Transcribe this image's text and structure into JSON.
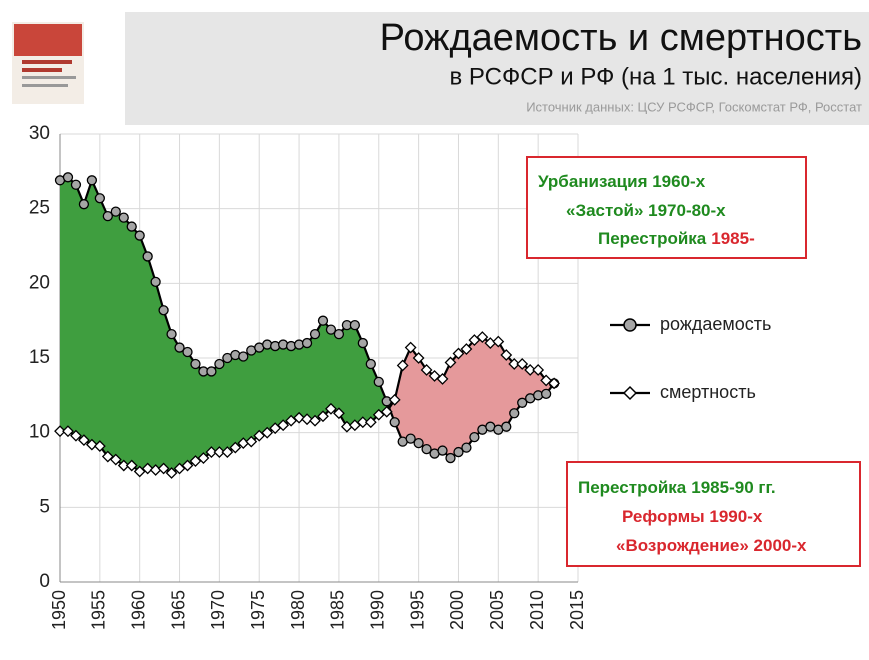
{
  "chart_data": {
    "type": "line",
    "title": "Рождаемость и смертность",
    "subtitle": "в РСФСР и РФ (на 1 тыс. населения)",
    "source": "Источник данных: ЦСУ РСФСР, Госкомстат РФ, Росстат",
    "x": [
      1950,
      1951,
      1952,
      1953,
      1954,
      1955,
      1956,
      1957,
      1958,
      1959,
      1960,
      1961,
      1962,
      1963,
      1964,
      1965,
      1966,
      1967,
      1968,
      1969,
      1970,
      1971,
      1972,
      1973,
      1974,
      1975,
      1976,
      1977,
      1978,
      1979,
      1980,
      1981,
      1982,
      1983,
      1984,
      1985,
      1986,
      1987,
      1988,
      1989,
      1990,
      1991,
      1992,
      1993,
      1994,
      1995,
      1996,
      1997,
      1998,
      1999,
      2000,
      2001,
      2002,
      2003,
      2004,
      2005,
      2006,
      2007,
      2008,
      2009,
      2010,
      2011,
      2012
    ],
    "series": [
      {
        "name": "рождаемость",
        "color": "#000000",
        "marker": "circle",
        "marker_fill": "#a6a6a6",
        "values": [
          26.9,
          27.1,
          26.6,
          25.3,
          26.9,
          25.7,
          24.5,
          24.8,
          24.4,
          23.8,
          23.2,
          21.8,
          20.1,
          18.2,
          16.6,
          15.7,
          15.4,
          14.6,
          14.1,
          14.1,
          14.6,
          15.0,
          15.2,
          15.1,
          15.5,
          15.7,
          15.9,
          15.8,
          15.9,
          15.8,
          15.9,
          16.0,
          16.6,
          17.5,
          16.9,
          16.6,
          17.2,
          17.2,
          16.0,
          14.6,
          13.4,
          12.1,
          10.7,
          9.4,
          9.6,
          9.3,
          8.9,
          8.6,
          8.8,
          8.3,
          8.7,
          9.0,
          9.7,
          10.2,
          10.4,
          10.2,
          10.4,
          11.3,
          12.0,
          12.3,
          12.5,
          12.6,
          13.3
        ]
      },
      {
        "name": "смертность",
        "color": "#000000",
        "marker": "diamond",
        "marker_fill": "#ffffff",
        "values": [
          10.1,
          10.1,
          9.8,
          9.5,
          9.2,
          9.1,
          8.4,
          8.2,
          7.8,
          7.8,
          7.4,
          7.6,
          7.5,
          7.6,
          7.3,
          7.6,
          7.8,
          8.1,
          8.3,
          8.7,
          8.7,
          8.7,
          9.0,
          9.3,
          9.4,
          9.8,
          10.0,
          10.3,
          10.5,
          10.8,
          11.0,
          10.9,
          10.8,
          11.1,
          11.6,
          11.3,
          10.4,
          10.5,
          10.7,
          10.7,
          11.2,
          11.4,
          12.2,
          14.5,
          15.7,
          15.0,
          14.2,
          13.8,
          13.6,
          14.7,
          15.3,
          15.6,
          16.2,
          16.4,
          16.0,
          16.1,
          15.2,
          14.6,
          14.6,
          14.2,
          14.2,
          13.5,
          13.3
        ]
      }
    ],
    "fill_colors": {
      "growth": "#3f9e3f",
      "decline": "#e5999b"
    },
    "xlim": [
      1950,
      2015
    ],
    "xticks": [
      1950,
      1955,
      1960,
      1965,
      1970,
      1975,
      1980,
      1985,
      1990,
      1995,
      2000,
      2005,
      2010,
      2015
    ],
    "ylim": [
      0,
      30
    ],
    "yticks": [
      0,
      5,
      10,
      15,
      20,
      25,
      30
    ],
    "grid": true,
    "annotations": [
      {
        "border": "#d9272e",
        "lines": [
          [
            {
              "text": "Урбанизация 1960-х",
              "color": "#1f8a1f"
            }
          ],
          [
            {
              "text": "«Застой» 1970-80-х",
              "color": "#1f8a1f"
            }
          ],
          [
            {
              "text": "Перестройка",
              "color": "#1f8a1f"
            },
            {
              "text": "1985-",
              "color": "#d9272e"
            }
          ]
        ]
      },
      {
        "border": "#d9272e",
        "lines": [
          [
            {
              "text": "Перестройка",
              "color": "#1f8a1f"
            },
            {
              "text": "1985-90 гг.",
              "color": "#1f8a1f"
            }
          ],
          [
            {
              "text": "Реформы 1990-х",
              "color": "#d9272e"
            }
          ],
          [
            {
              "text": "«Возрождение» 2000-х",
              "color": "#d9272e"
            }
          ]
        ]
      }
    ]
  }
}
